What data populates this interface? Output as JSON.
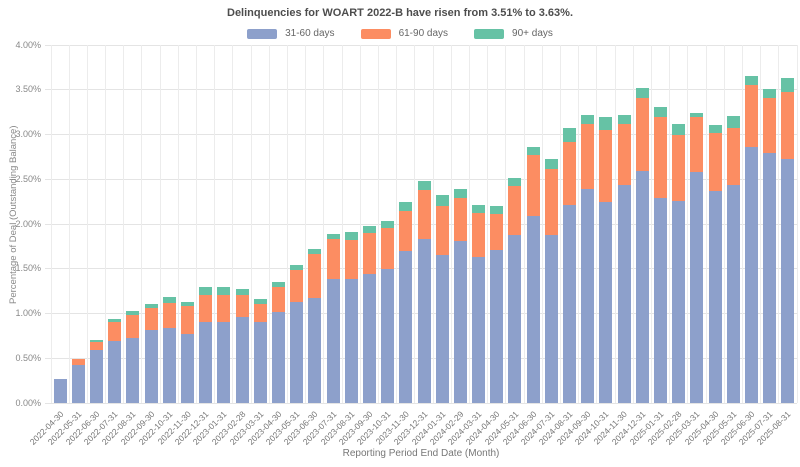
{
  "chart_data": {
    "type": "bar",
    "stacked": true,
    "title": "Delinquencies for WOART 2022-B have risen from 3.51% to 3.63%.",
    "xlabel": "Reporting Period End Date (Month)",
    "ylabel": "Percentage of Deal (Outstanding Balance)",
    "ylim": [
      0,
      4.0
    ],
    "ytick_step": 0.5,
    "ytick_labels": [
      "0.00%",
      "0.50%",
      "1.00%",
      "1.50%",
      "2.00%",
      "2.50%",
      "3.00%",
      "3.50%",
      "4.00%"
    ],
    "grid": true,
    "legend_position": "top",
    "categories": [
      "2022-04-30",
      "2022-05-31",
      "2022-06-30",
      "2022-07-31",
      "2022-08-31",
      "2022-09-30",
      "2022-10-31",
      "2022-11-30",
      "2022-12-31",
      "2023-01-31",
      "2023-02-28",
      "2023-03-31",
      "2023-04-30",
      "2023-05-31",
      "2023-06-30",
      "2023-07-31",
      "2023-08-31",
      "2023-09-30",
      "2023-10-31",
      "2023-11-30",
      "2023-12-31",
      "2024-01-31",
      "2024-02-29",
      "2024-03-31",
      "2024-04-30",
      "2024-05-31",
      "2024-06-30",
      "2024-07-31",
      "2024-08-31",
      "2024-09-30",
      "2024-10-31",
      "2024-11-30",
      "2024-12-31",
      "2025-01-31",
      "2025-02-28",
      "2025-03-31",
      "2025-04-30",
      "2025-05-31",
      "2025-06-30",
      "2025-07-31",
      "2025-08-31"
    ],
    "series": [
      {
        "name": "31-60 days",
        "color": "#8da0cb",
        "values": [
          0.27,
          0.42,
          0.59,
          0.69,
          0.73,
          0.82,
          0.84,
          0.77,
          0.91,
          0.9,
          0.96,
          0.9,
          1.02,
          1.13,
          1.17,
          1.38,
          1.39,
          1.44,
          1.5,
          1.7,
          1.83,
          1.65,
          1.81,
          1.63,
          1.71,
          1.88,
          2.09,
          1.88,
          2.21,
          2.39,
          2.25,
          2.44,
          2.59,
          2.29,
          2.26,
          2.58,
          2.37,
          2.44,
          2.86,
          2.79,
          2.73
        ]
      },
      {
        "name": "61-90 days",
        "color": "#fc8d62",
        "values": [
          0.0,
          0.07,
          0.09,
          0.21,
          0.25,
          0.24,
          0.28,
          0.31,
          0.3,
          0.31,
          0.25,
          0.21,
          0.28,
          0.36,
          0.5,
          0.45,
          0.43,
          0.46,
          0.45,
          0.44,
          0.55,
          0.55,
          0.48,
          0.49,
          0.4,
          0.54,
          0.68,
          0.74,
          0.71,
          0.73,
          0.8,
          0.68,
          0.82,
          0.91,
          0.73,
          0.61,
          0.65,
          0.63,
          0.69,
          0.62,
          0.75
        ]
      },
      {
        "name": "90+ days",
        "color": "#66c2a5",
        "values": [
          0.0,
          0.0,
          0.02,
          0.04,
          0.05,
          0.05,
          0.06,
          0.05,
          0.09,
          0.09,
          0.06,
          0.05,
          0.05,
          0.05,
          0.05,
          0.06,
          0.09,
          0.08,
          0.08,
          0.11,
          0.1,
          0.12,
          0.1,
          0.09,
          0.09,
          0.09,
          0.09,
          0.11,
          0.15,
          0.1,
          0.14,
          0.1,
          0.11,
          0.11,
          0.13,
          0.05,
          0.09,
          0.14,
          0.1,
          0.1,
          0.15
        ]
      }
    ],
    "note_first_total": "0.27%",
    "note_last_totals": [
      "3.51%",
      "3.63%"
    ]
  }
}
